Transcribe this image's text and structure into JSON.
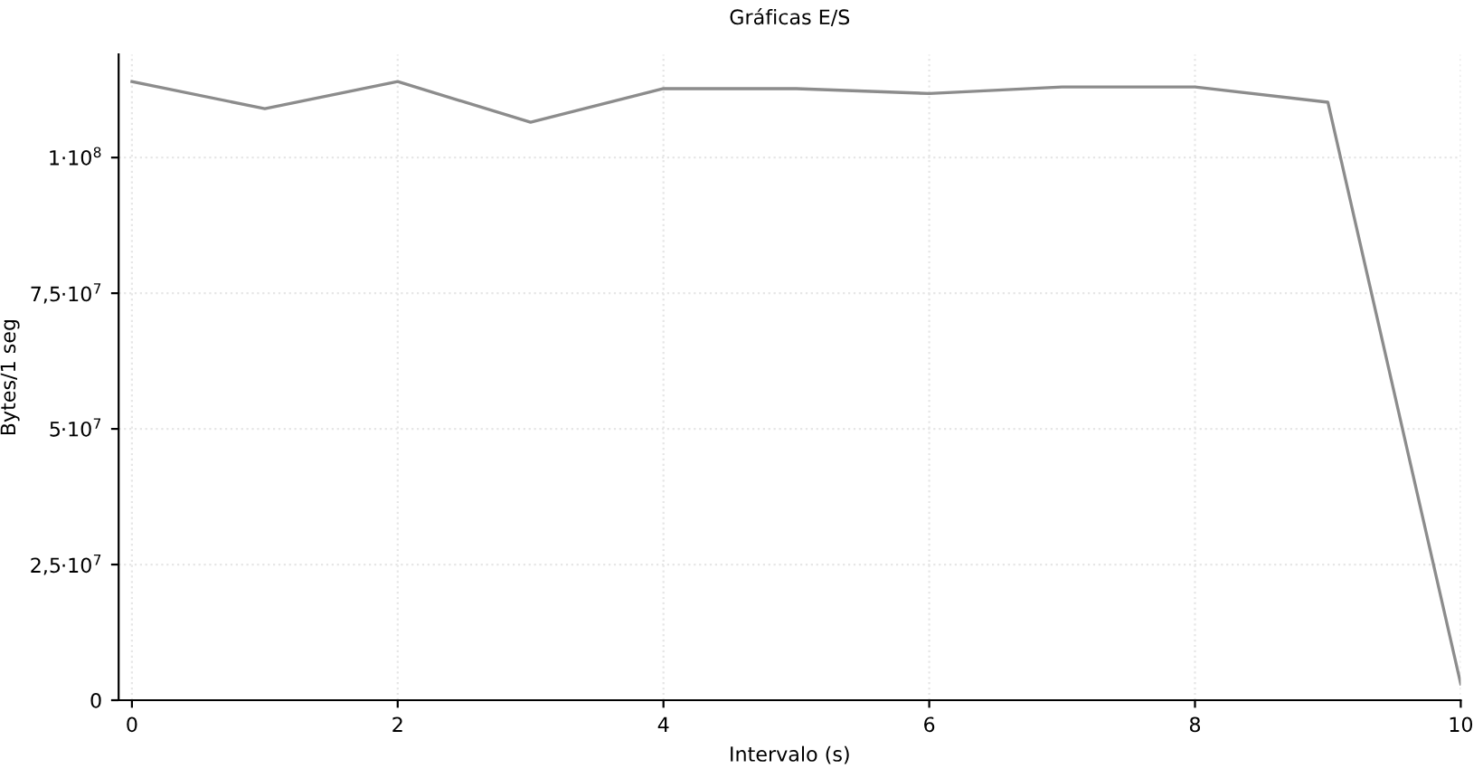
{
  "chart_data": {
    "type": "line",
    "title": "Gráficas E/S",
    "xlabel": "Intervalo (s)",
    "ylabel": "Bytes/1 seg",
    "x": [
      0,
      1,
      2,
      3,
      4,
      5,
      6,
      7,
      8,
      9,
      10
    ],
    "series": [
      {
        "color": "#8c8c8c",
        "values": [
          114000000,
          109000000,
          114000000,
          106500000,
          112700000,
          112700000,
          111800000,
          113000000,
          113000000,
          110200000,
          3000000
        ]
      }
    ],
    "xlim": [
      -0.1,
      10
    ],
    "xticks": [
      0,
      2,
      4,
      6,
      8,
      10
    ],
    "ylim": [
      0,
      119000000
    ],
    "yticks": [
      0,
      {
        "value": 25000000,
        "label": "2,5·10$^{7}$"
      },
      {
        "value": 50000000,
        "label": "5·10$^{7}$"
      },
      {
        "value": 75000000,
        "label": "7,5·10$^{7}$"
      },
      {
        "value": 100000000,
        "label": "1·10$^{8}$"
      }
    ],
    "grid": true,
    "marker": "none",
    "line_style": "solid"
  }
}
